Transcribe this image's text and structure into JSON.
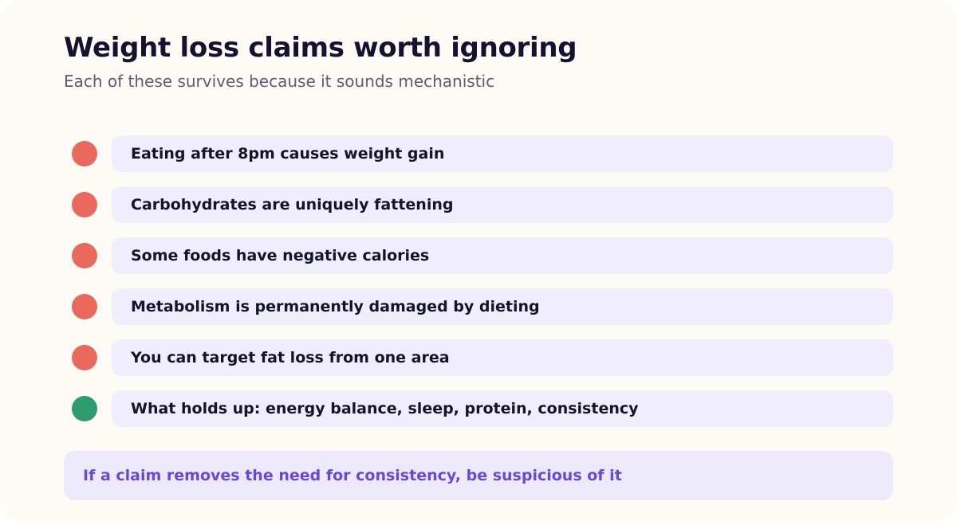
{
  "header": {
    "title": "Weight loss claims worth ignoring",
    "subtitle": "Each of these survives because it sounds mechanistic"
  },
  "colors": {
    "myth_marker": "#e96a5c",
    "fact_marker": "#2e9a6f",
    "accent_text": "#6a46d9"
  },
  "items": [
    {
      "text": "Eating after 8pm causes weight gain",
      "status": "myth",
      "marker_color": "#e96a5c"
    },
    {
      "text": "Carbohydrates are uniquely fattening",
      "status": "myth",
      "marker_color": "#e96a5c"
    },
    {
      "text": "Some foods have negative calories",
      "status": "myth",
      "marker_color": "#e96a5c"
    },
    {
      "text": "Metabolism is permanently damaged by dieting",
      "status": "myth",
      "marker_color": "#e96a5c"
    },
    {
      "text": "You can target fat loss from one area",
      "status": "myth",
      "marker_color": "#e96a5c"
    },
    {
      "text": "What holds up: energy balance, sleep, protein, consistency",
      "status": "fact",
      "marker_color": "#2e9a6f"
    }
  ],
  "callout": {
    "text": "If a claim removes the need for consistency, be suspicious of it"
  }
}
